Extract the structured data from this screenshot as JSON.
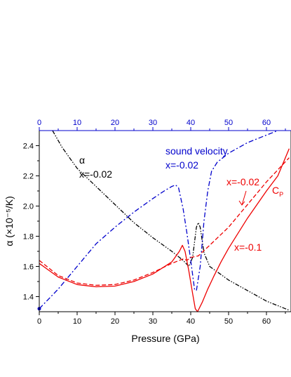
{
  "chart_data": {
    "type": "line",
    "title": "",
    "xlabel": "Pressure (GPa)",
    "ylabel": "α (×10⁻⁵/K)",
    "xlim": [
      0,
      66
    ],
    "ylim": [
      1.3,
      2.5
    ],
    "x_ticks": [
      0,
      10,
      20,
      30,
      40,
      50,
      60
    ],
    "x_tick_labels": [
      "0",
      "10",
      "20",
      "30",
      "40",
      "50",
      "60"
    ],
    "top_ticks": [
      0,
      10,
      20,
      30,
      40,
      50,
      60
    ],
    "top_tick_labels": [
      "0",
      "10",
      "20",
      "30",
      "40",
      "50",
      "60"
    ],
    "y_ticks": [
      1.4,
      1.6,
      1.8,
      2.0,
      2.2,
      2.4
    ],
    "y_tick_labels": [
      "1.4",
      "1.6",
      "1.8",
      "2.0",
      "2.2",
      "2.4"
    ],
    "grid": false,
    "colors": {
      "black": "#000000",
      "blue": "#0000cc",
      "red": "#ee0000",
      "top_axis": "#0000cc"
    },
    "annotations": [
      {
        "id": "alpha-symbol",
        "text": "α",
        "color": "#000000"
      },
      {
        "id": "alpha-x",
        "text": "x=-0.02",
        "color": "#000000"
      },
      {
        "id": "sound-title",
        "text": "sound velocity",
        "color": "#0000cc"
      },
      {
        "id": "sound-x",
        "text": "x=-0.02",
        "color": "#0000cc"
      },
      {
        "id": "cp-x002",
        "text": "x=-0.02",
        "color": "#ee0000"
      },
      {
        "id": "cp-label",
        "text": "C",
        "sub": "P",
        "color": "#ee0000"
      },
      {
        "id": "cp-x01",
        "text": "x=-0.1",
        "color": "#ee0000"
      }
    ],
    "series": [
      {
        "id": "alpha",
        "color": "#000000",
        "style": "dash-dot-dot",
        "points": [
          [
            3.5,
            2.5
          ],
          [
            6,
            2.39
          ],
          [
            10,
            2.25
          ],
          [
            15,
            2.13
          ],
          [
            20,
            2.01
          ],
          [
            25,
            1.89
          ],
          [
            30,
            1.79
          ],
          [
            35,
            1.7
          ],
          [
            38,
            1.64
          ],
          [
            39.5,
            1.6
          ],
          [
            40.5,
            1.66
          ],
          [
            41.5,
            1.86
          ],
          [
            42,
            1.89
          ],
          [
            42.5,
            1.86
          ],
          [
            43.5,
            1.69
          ],
          [
            45,
            1.6
          ],
          [
            50,
            1.51
          ],
          [
            55,
            1.44
          ],
          [
            60,
            1.37
          ],
          [
            66,
            1.31
          ]
        ]
      },
      {
        "id": "sound-velocity",
        "color": "#0000cc",
        "style": "dash-dot",
        "points": [
          [
            0,
            1.32
          ],
          [
            5,
            1.45
          ],
          [
            10,
            1.6
          ],
          [
            15,
            1.75
          ],
          [
            20,
            1.86
          ],
          [
            25,
            1.96
          ],
          [
            30,
            2.05
          ],
          [
            33,
            2.1
          ],
          [
            35,
            2.13
          ],
          [
            36,
            2.14
          ],
          [
            36.8,
            2.12
          ],
          [
            38,
            1.98
          ],
          [
            39,
            1.82
          ],
          [
            40,
            1.64
          ],
          [
            41,
            1.45
          ],
          [
            41.5,
            1.44
          ],
          [
            42.5,
            1.6
          ],
          [
            43.5,
            1.9
          ],
          [
            44.5,
            2.1
          ],
          [
            45.5,
            2.23
          ],
          [
            47,
            2.29
          ],
          [
            50,
            2.35
          ],
          [
            55,
            2.42
          ],
          [
            60,
            2.47
          ],
          [
            63,
            2.5
          ]
        ]
      },
      {
        "id": "cp-x-0.02",
        "color": "#ee0000",
        "style": "dashed",
        "points": [
          [
            0,
            1.64
          ],
          [
            5,
            1.54
          ],
          [
            10,
            1.49
          ],
          [
            15,
            1.475
          ],
          [
            20,
            1.48
          ],
          [
            25,
            1.51
          ],
          [
            30,
            1.56
          ],
          [
            35,
            1.62
          ],
          [
            37,
            1.64
          ],
          [
            38,
            1.65
          ],
          [
            39,
            1.64
          ],
          [
            40,
            1.66
          ],
          [
            42,
            1.67
          ],
          [
            45,
            1.74
          ],
          [
            50,
            1.86
          ],
          [
            55,
            2.01
          ],
          [
            60,
            2.16
          ],
          [
            66,
            2.32
          ]
        ]
      },
      {
        "id": "cp-x-0.1",
        "color": "#ee0000",
        "style": "solid",
        "points": [
          [
            0,
            1.62
          ],
          [
            5,
            1.53
          ],
          [
            10,
            1.48
          ],
          [
            15,
            1.465
          ],
          [
            20,
            1.47
          ],
          [
            25,
            1.5
          ],
          [
            30,
            1.55
          ],
          [
            35,
            1.63
          ],
          [
            37,
            1.7
          ],
          [
            37.8,
            1.74
          ],
          [
            38.5,
            1.7
          ],
          [
            39.5,
            1.57
          ],
          [
            40.5,
            1.42
          ],
          [
            41.2,
            1.32
          ],
          [
            41.8,
            1.3
          ],
          [
            43,
            1.36
          ],
          [
            44.5,
            1.45
          ],
          [
            46,
            1.53
          ],
          [
            48,
            1.63
          ],
          [
            50,
            1.72
          ],
          [
            55,
            1.92
          ],
          [
            60,
            2.1
          ],
          [
            63,
            2.2
          ],
          [
            66,
            2.38
          ]
        ]
      }
    ]
  }
}
